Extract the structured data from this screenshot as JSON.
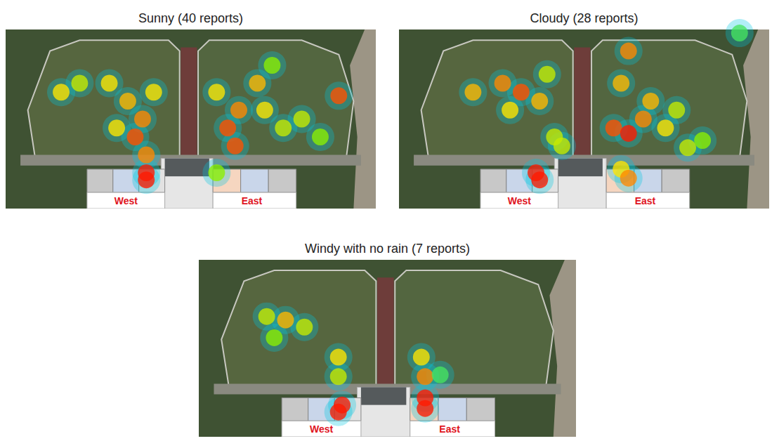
{
  "chart_data": [
    {
      "type": "scatter",
      "title": "Sunny (40 reports)",
      "annotations": [
        "West",
        "East"
      ],
      "xlim": [
        0,
        100
      ],
      "ylim": [
        0,
        100
      ],
      "tick_labels": false,
      "color_range": [
        0,
        1
      ],
      "x": [
        15,
        20,
        28,
        33,
        35,
        37,
        30,
        40,
        38,
        38,
        38,
        57,
        60,
        62,
        63,
        68,
        70,
        75,
        80,
        72,
        90,
        57,
        85
      ],
      "values": [
        35,
        30,
        30,
        40,
        60,
        50,
        55,
        35,
        70,
        80,
        84,
        35,
        55,
        65,
        45,
        30,
        45,
        55,
        50,
        20,
        37,
        80,
        60
      ],
      "intensity": [
        0.6,
        0.5,
        0.6,
        0.7,
        0.9,
        0.8,
        0.6,
        0.6,
        0.8,
        1,
        1,
        0.6,
        0.9,
        0.9,
        0.8,
        0.7,
        0.6,
        0.5,
        0.5,
        0.4,
        0.9,
        0.4,
        0.4
      ]
    },
    {
      "type": "scatter",
      "title": "Cloudy (28 reports)",
      "annotations": [
        "West",
        "East"
      ],
      "xlim": [
        0,
        100
      ],
      "ylim": [
        0,
        100
      ],
      "tick_labels": false,
      "color_range": [
        0,
        1
      ],
      "x": [
        20,
        28,
        33,
        38,
        30,
        40,
        42,
        44,
        37,
        38,
        60,
        58,
        62,
        66,
        68,
        72,
        75,
        62,
        60,
        62,
        78,
        92,
        82
      ],
      "values": [
        35,
        30,
        35,
        40,
        45,
        25,
        60,
        65,
        80,
        84,
        30,
        55,
        58,
        50,
        40,
        55,
        45,
        12,
        78,
        83,
        66,
        2,
        62
      ],
      "intensity": [
        0.7,
        0.8,
        0.9,
        0.7,
        0.6,
        0.5,
        0.5,
        0.5,
        1,
        1,
        0.7,
        0.9,
        1,
        0.8,
        0.7,
        0.6,
        0.5,
        0.8,
        0.6,
        0.8,
        0.5,
        0.3,
        0.4
      ]
    },
    {
      "type": "scatter",
      "title": "Windy with no rain (7 reports)",
      "annotations": [
        "West",
        "East"
      ],
      "xlim": [
        0,
        100
      ],
      "ylim": [
        0,
        100
      ],
      "tick_labels": false,
      "color_range": [
        0,
        1
      ],
      "x": [
        18,
        23,
        28,
        20,
        37,
        37,
        38,
        37,
        59,
        60,
        60,
        60,
        64
      ],
      "values": [
        32,
        34,
        38,
        44,
        55,
        66,
        82,
        86,
        55,
        66,
        78,
        84,
        65
      ],
      "intensity": [
        0.5,
        0.7,
        0.5,
        0.4,
        0.6,
        0.5,
        1,
        1,
        0.6,
        0.8,
        1,
        1,
        0.3
      ]
    }
  ]
}
